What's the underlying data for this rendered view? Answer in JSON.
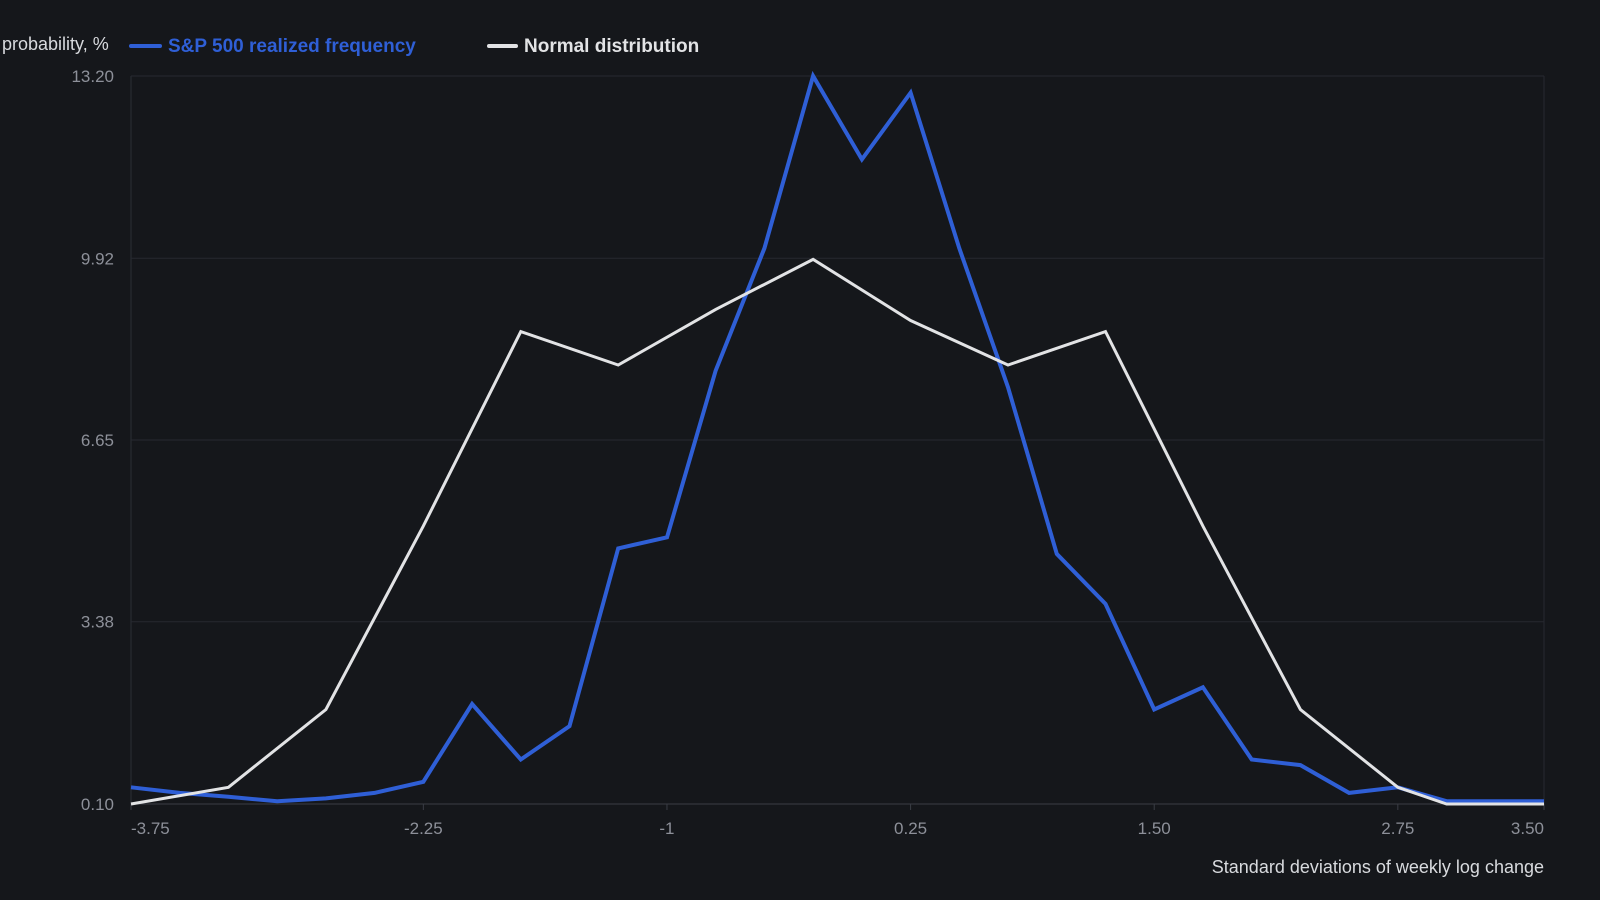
{
  "chart_data": {
    "type": "line",
    "title": "",
    "ylabel": "probability, %",
    "xlabel": "Standard deviations of weekly log change",
    "x_tick_labels": [
      "-3.75",
      "-2.25",
      "-1",
      "0.25",
      "1.50",
      "2.75",
      "3.50"
    ],
    "x_tick_values": [
      -3.75,
      -2.25,
      -1,
      0.25,
      1.5,
      2.75,
      3.5
    ],
    "y_tick_labels": [
      "0.10",
      "3.38",
      "6.65",
      "9.92",
      "13.20"
    ],
    "y_tick_values": [
      0.1,
      3.38,
      6.65,
      9.92,
      13.2
    ],
    "xlim": [
      -3.75,
      3.5
    ],
    "ylim": [
      0.1,
      13.2
    ],
    "grid": true,
    "legend_position": "top-left",
    "series": [
      {
        "name": "S&P 500 realized frequency",
        "color": "#2f5fd6",
        "x": [
          -3.75,
          -3.5,
          -3.25,
          -3.0,
          -2.75,
          -2.5,
          -2.25,
          -2.0,
          -1.75,
          -1.5,
          -1.25,
          -1.0,
          -0.75,
          -0.5,
          -0.25,
          0.0,
          0.25,
          0.5,
          0.75,
          1.0,
          1.25,
          1.5,
          1.75,
          2.0,
          2.25,
          2.5,
          2.75,
          3.0,
          3.25,
          3.5
        ],
        "y": [
          0.4,
          0.3,
          0.23,
          0.15,
          0.2,
          0.3,
          0.5,
          1.9,
          0.9,
          1.5,
          4.7,
          4.9,
          7.9,
          10.1,
          13.2,
          11.7,
          12.9,
          10.1,
          7.6,
          4.6,
          3.7,
          1.8,
          2.2,
          0.9,
          0.8,
          0.3,
          0.4,
          0.15,
          0.15,
          0.15
        ]
      },
      {
        "name": "Normal distribution",
        "color": "#e2e3e5",
        "x": [
          -3.75,
          -3.25,
          -2.75,
          -2.25,
          -1.75,
          -1.25,
          -0.75,
          -0.25,
          0.25,
          0.75,
          1.25,
          1.75,
          2.25,
          2.75,
          3.0,
          3.5
        ],
        "y": [
          0.1,
          0.4,
          1.8,
          5.1,
          8.6,
          8.0,
          9.0,
          9.9,
          8.8,
          8.0,
          8.6,
          5.1,
          1.8,
          0.4,
          0.1,
          0.1
        ]
      }
    ]
  }
}
